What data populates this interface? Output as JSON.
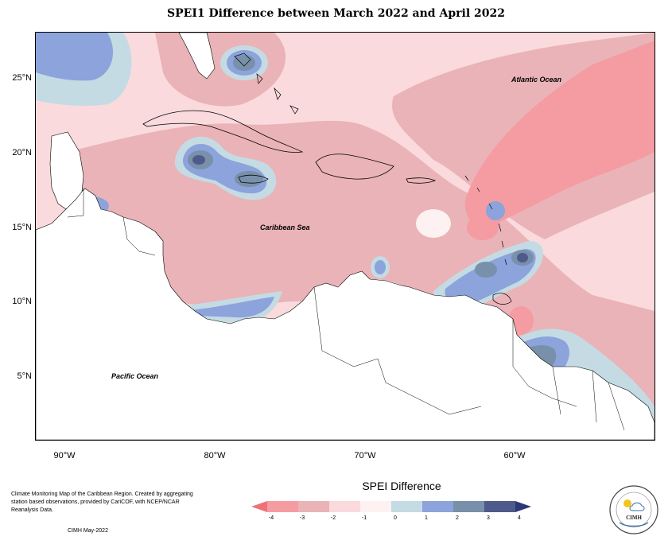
{
  "title": "SPEI1 Difference between March 2022 and April 2022",
  "map": {
    "latitude_labels": [
      "25°N",
      "20°N",
      "15°N",
      "10°N",
      "5°N"
    ],
    "longitude_labels": [
      "90°W",
      "80°W",
      "70°W",
      "60°W"
    ],
    "ocean_labels": {
      "atlantic": "Atlantic Ocean",
      "caribbean": "Caribbean Sea",
      "pacific": "Pacific Ocean"
    }
  },
  "legend": {
    "title": "SPEI Difference",
    "ticks": [
      "-4",
      "-3",
      "-2",
      "-1",
      "0",
      "1",
      "2",
      "3",
      "4"
    ],
    "colors": [
      "#f0707a",
      "#f49ca2",
      "#eab3b7",
      "#fadadd",
      "#fdf1f1",
      "#c4dbe4",
      "#8ca3dc",
      "#7890aa",
      "#4e5a89",
      "#2b3778"
    ]
  },
  "footer": {
    "description": "Climate Monitoring Map of the Caribbean Region. Created by aggregating station based observations, provided by CariCOF, with NCEP/NCAR Reanalysis Data.",
    "credit": "CIMH May-2022"
  },
  "logo": {
    "text": "CIMH",
    "icon": "cimh-logo-icon"
  }
}
